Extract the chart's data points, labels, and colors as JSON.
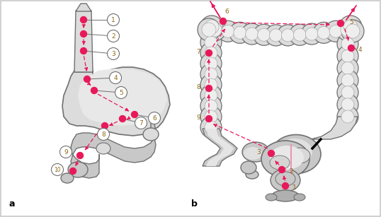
{
  "background_color": "#ffffff",
  "border_color": "#c8c8c8",
  "dot_color": "#e8195a",
  "arrow_color": "#e8195a",
  "label_color": "#8B6914",
  "outline_color": "#707070",
  "fill_light": "#dcdcdc",
  "fill_mid": "#c8c8c8",
  "fill_dark": "#b0b0b0",
  "label_a": "a",
  "label_b": "b"
}
